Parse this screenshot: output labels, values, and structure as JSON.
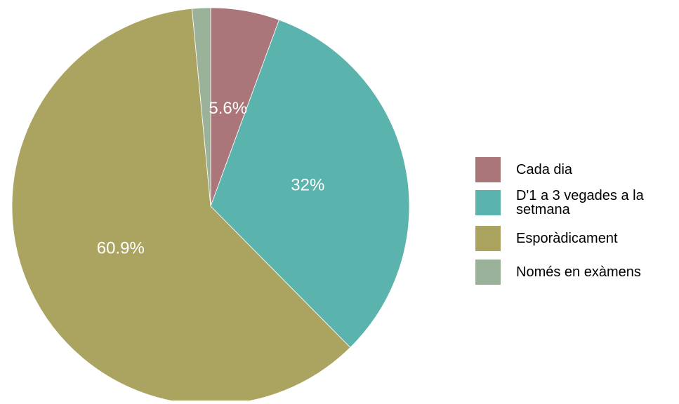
{
  "chart_data": {
    "type": "pie",
    "title": "",
    "slices": [
      {
        "label": "Cada dia",
        "value": 5.6,
        "display": "5.6%",
        "color": "#ab767a",
        "show_label": true
      },
      {
        "label": "D'1 a 3 vegades a la setmana",
        "value": 32,
        "display": "32%",
        "color": "#5ab3ac",
        "show_label": true
      },
      {
        "label": "Esporàdicament",
        "value": 60.9,
        "display": "60.9%",
        "color": "#aba461",
        "show_label": true
      },
      {
        "label": "Només en exàmens",
        "value": 1.5,
        "display": "",
        "color": "#9bb29a",
        "show_label": false
      }
    ],
    "legend_position": "right",
    "label_color": "#ffffff"
  }
}
